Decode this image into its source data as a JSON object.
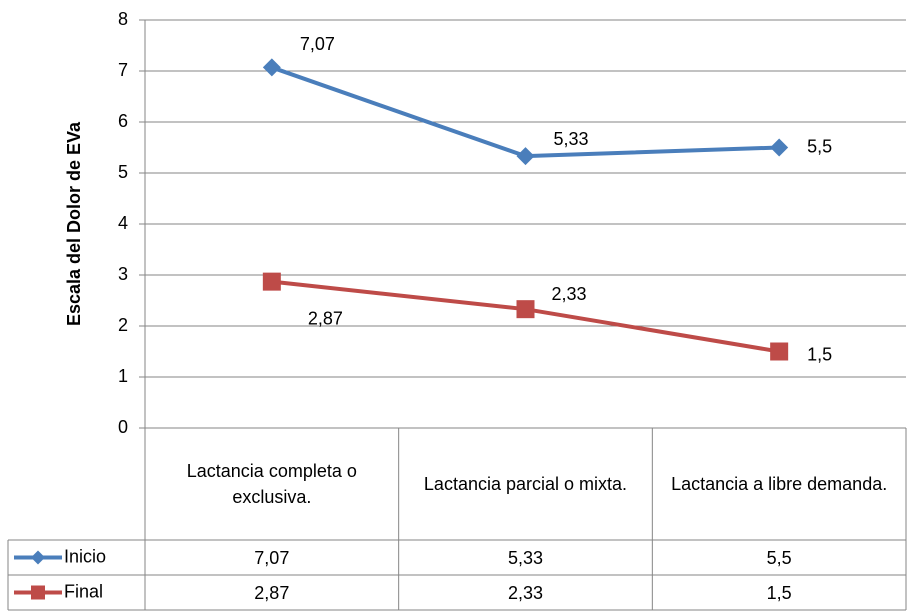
{
  "chart_data": {
    "type": "line",
    "y_label": "Escala del Dolor de EVa",
    "categories": [
      "Lactancia completa o exclusiva.",
      "Lactancia parcial o mixta.",
      "Lactancia a libre demanda."
    ],
    "series": [
      {
        "name": "Inicio",
        "color": "#4a7ebb",
        "marker": "diamond",
        "values": [
          7.07,
          5.33,
          5.5
        ],
        "value_labels": [
          "7,07",
          "5,33",
          "5,5"
        ]
      },
      {
        "name": "Final",
        "color": "#be4b48",
        "marker": "square",
        "values": [
          2.87,
          2.33,
          1.5
        ],
        "value_labels": [
          "2,87",
          "2,33",
          "1,5"
        ]
      }
    ],
    "ylim": [
      0,
      8
    ],
    "yticks": [
      0,
      1,
      2,
      3,
      4,
      5,
      6,
      7,
      8
    ],
    "grid": true,
    "data_table": true
  }
}
